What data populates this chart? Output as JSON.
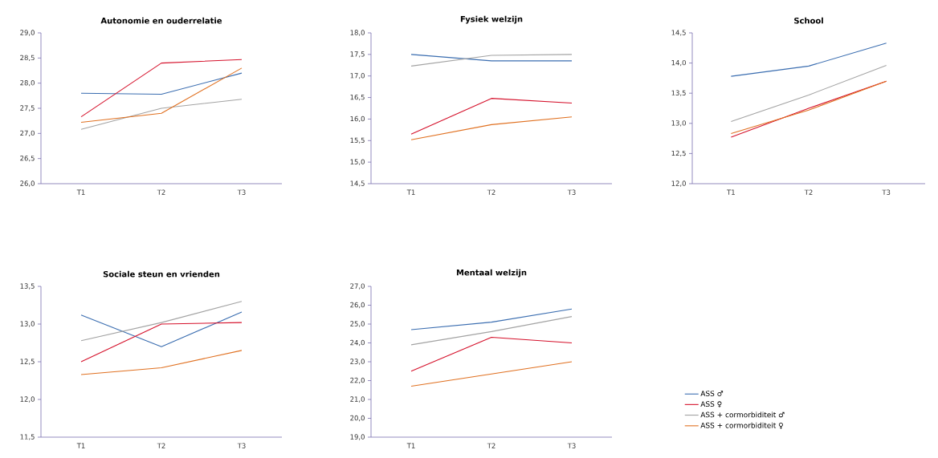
{
  "chart_data": [
    {
      "type": "line",
      "title": "Autonomie en ouderrelatie",
      "categories": [
        "T1",
        "T2",
        "T3"
      ],
      "ylim": [
        26,
        29
      ],
      "yticks": [
        {
          "value": 26,
          "label": "26,0"
        },
        {
          "value": 26.5,
          "label": "26,5"
        },
        {
          "value": 27,
          "label": "27,0"
        },
        {
          "value": 27.5,
          "label": "27,5"
        },
        {
          "value": 28,
          "label": "28,0"
        },
        {
          "value": 28.5,
          "label": "28,5"
        },
        {
          "value": 29,
          "label": "29,0"
        }
      ],
      "series": [
        {
          "color": "#3a6db0",
          "values": [
            27.8,
            27.78,
            28.2
          ]
        },
        {
          "color": "#d5112b",
          "values": [
            27.33,
            28.4,
            28.47
          ]
        },
        {
          "color": "#a3a3a3",
          "values": [
            27.08,
            27.5,
            27.68
          ]
        },
        {
          "color": "#e07020",
          "values": [
            27.22,
            27.4,
            28.3
          ]
        }
      ]
    },
    {
      "type": "line",
      "title": "Fysiek welzijn",
      "categories": [
        "T1",
        "T2",
        "T3"
      ],
      "ylim": [
        14.5,
        18
      ],
      "yticks": [
        {
          "value": 14.5,
          "label": "14,5"
        },
        {
          "value": 15,
          "label": "15,0"
        },
        {
          "value": 15.5,
          "label": "15,5"
        },
        {
          "value": 16,
          "label": "16,0"
        },
        {
          "value": 16.5,
          "label": "16,5"
        },
        {
          "value": 17,
          "label": "17,0"
        },
        {
          "value": 17.5,
          "label": "17,5"
        },
        {
          "value": 18,
          "label": "18,0"
        }
      ],
      "series": [
        {
          "color": "#3a6db0",
          "values": [
            17.5,
            17.35,
            17.35
          ]
        },
        {
          "color": "#d5112b",
          "values": [
            15.65,
            16.48,
            16.37
          ]
        },
        {
          "color": "#a3a3a3",
          "values": [
            17.23,
            17.48,
            17.5
          ]
        },
        {
          "color": "#e07020",
          "values": [
            15.52,
            15.87,
            16.05
          ]
        }
      ]
    },
    {
      "type": "line",
      "title": "School",
      "categories": [
        "T1",
        "T2",
        "T3"
      ],
      "ylim": [
        12,
        14.5
      ],
      "yticks": [
        {
          "value": 12,
          "label": "12,0"
        },
        {
          "value": 12.5,
          "label": "12,5"
        },
        {
          "value": 13,
          "label": "13,0"
        },
        {
          "value": 13.5,
          "label": "13,5"
        },
        {
          "value": 14,
          "label": "14,0"
        },
        {
          "value": 14.5,
          "label": "14,5"
        }
      ],
      "series": [
        {
          "color": "#3a6db0",
          "values": [
            13.78,
            13.95,
            14.33
          ]
        },
        {
          "color": "#d5112b",
          "values": [
            12.77,
            13.25,
            13.7
          ]
        },
        {
          "color": "#a3a3a3",
          "values": [
            13.03,
            13.47,
            13.96
          ]
        },
        {
          "color": "#e07020",
          "values": [
            12.83,
            13.22,
            13.7
          ]
        }
      ]
    },
    {
      "type": "line",
      "title": "Sociale steun en vrienden",
      "categories": [
        "T1",
        "T2",
        "T3"
      ],
      "ylim": [
        11.5,
        13.5
      ],
      "yticks": [
        {
          "value": 11.5,
          "label": "11,5"
        },
        {
          "value": 12,
          "label": "12,0"
        },
        {
          "value": 12.5,
          "label": "12,5"
        },
        {
          "value": 13,
          "label": "13,0"
        },
        {
          "value": 13.5,
          "label": "13,5"
        }
      ],
      "series": [
        {
          "color": "#3a6db0",
          "values": [
            13.12,
            12.7,
            13.16
          ]
        },
        {
          "color": "#d5112b",
          "values": [
            12.5,
            13.0,
            13.02
          ]
        },
        {
          "color": "#a3a3a3",
          "values": [
            12.78,
            13.02,
            13.3
          ]
        },
        {
          "color": "#e07020",
          "values": [
            12.33,
            12.42,
            12.65
          ]
        }
      ]
    },
    {
      "type": "line",
      "title": "Mentaal welzijn",
      "categories": [
        "T1",
        "T2",
        "T3"
      ],
      "ylim": [
        19,
        27
      ],
      "yticks": [
        {
          "value": 19,
          "label": "19,0"
        },
        {
          "value": 20,
          "label": "20,0"
        },
        {
          "value": 21,
          "label": "21,0"
        },
        {
          "value": 22,
          "label": "22,0"
        },
        {
          "value": 23,
          "label": "23,0"
        },
        {
          "value": 24,
          "label": "24,0"
        },
        {
          "value": 25,
          "label": "25,0"
        },
        {
          "value": 26,
          "label": "26,0"
        },
        {
          "value": 27,
          "label": "27,0"
        }
      ],
      "legend": "right",
      "series": [
        {
          "name": "ASS ♂",
          "color": "#3a6db0",
          "values": [
            24.7,
            25.1,
            25.8
          ]
        },
        {
          "name": "ASS ♀",
          "color": "#d5112b",
          "values": [
            22.5,
            24.3,
            24.0
          ]
        },
        {
          "name": "ASS + cormorbiditeit ♂",
          "color": "#a3a3a3",
          "values": [
            23.9,
            24.6,
            25.4
          ]
        },
        {
          "name": "ASS + cormorbiditeit ♀",
          "color": "#e07020",
          "values": [
            21.7,
            22.35,
            23.0
          ]
        }
      ]
    }
  ]
}
